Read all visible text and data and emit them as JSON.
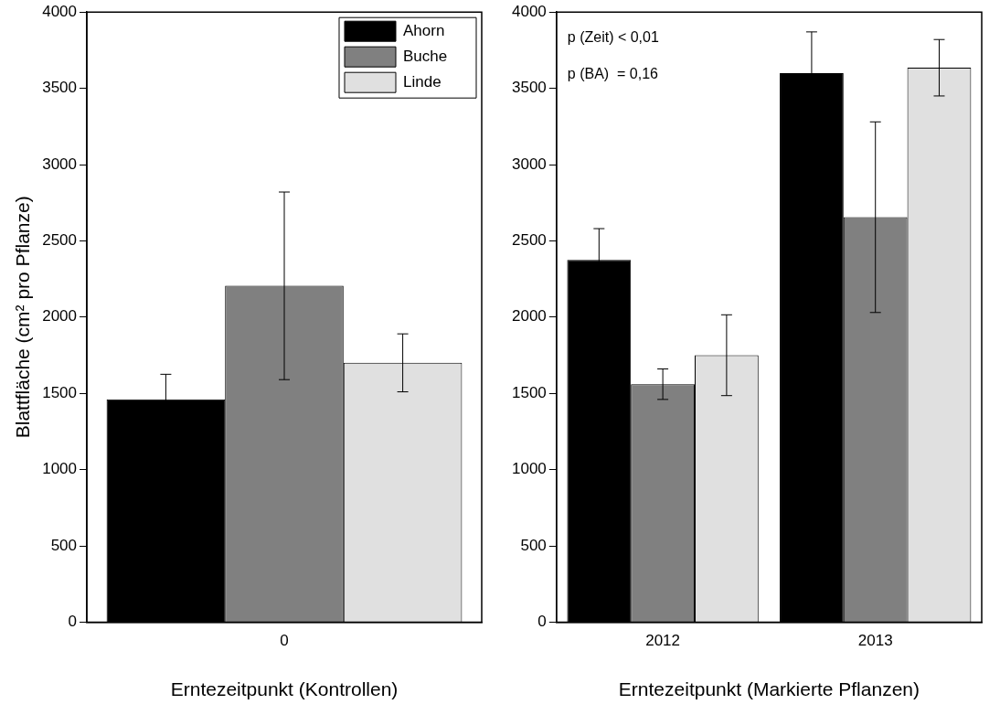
{
  "chart_data": [
    {
      "type": "bar",
      "ylabel": "Blattfläche (cm² pro Pflanze)",
      "xlabel": "Erntezeitpunkt (Kontrollen)",
      "categories": [
        "0"
      ],
      "ylim": [
        0,
        4000
      ],
      "yticks": [
        0,
        500,
        1000,
        1500,
        2000,
        2500,
        3000,
        3500,
        4000
      ],
      "grid": false,
      "legend": "top right",
      "series": [
        {
          "name": "Ahorn",
          "color": "#000000",
          "values": [
            1460
          ],
          "errors": [
            165
          ]
        },
        {
          "name": "Buche",
          "color": "#808080",
          "values": [
            2205
          ],
          "errors": [
            615
          ]
        },
        {
          "name": "Linde",
          "color": "#e0e0e0",
          "values": [
            1700
          ],
          "errors": [
            190
          ]
        }
      ]
    },
    {
      "type": "bar",
      "xlabel": "Erntezeitpunkt (Markierte Pflanzen)",
      "categories": [
        "2012",
        "2013"
      ],
      "ylim": [
        0,
        4000
      ],
      "yticks": [
        0,
        500,
        1000,
        1500,
        2000,
        2500,
        3000,
        3500,
        4000
      ],
      "grid": false,
      "legend": false,
      "annotations": [
        "p (Zeit) < 0,01",
        "p (BA)  = 0,16"
      ],
      "series": [
        {
          "color": "#000000",
          "values": [
            2375,
            3600
          ],
          "errors": [
            205,
            270
          ]
        },
        {
          "color": "#808080",
          "values": [
            1560,
            2655
          ],
          "errors": [
            100,
            625
          ]
        },
        {
          "color": "#e0e0e0",
          "values": [
            1750,
            3635
          ],
          "errors": [
            265,
            185
          ]
        }
      ]
    }
  ]
}
